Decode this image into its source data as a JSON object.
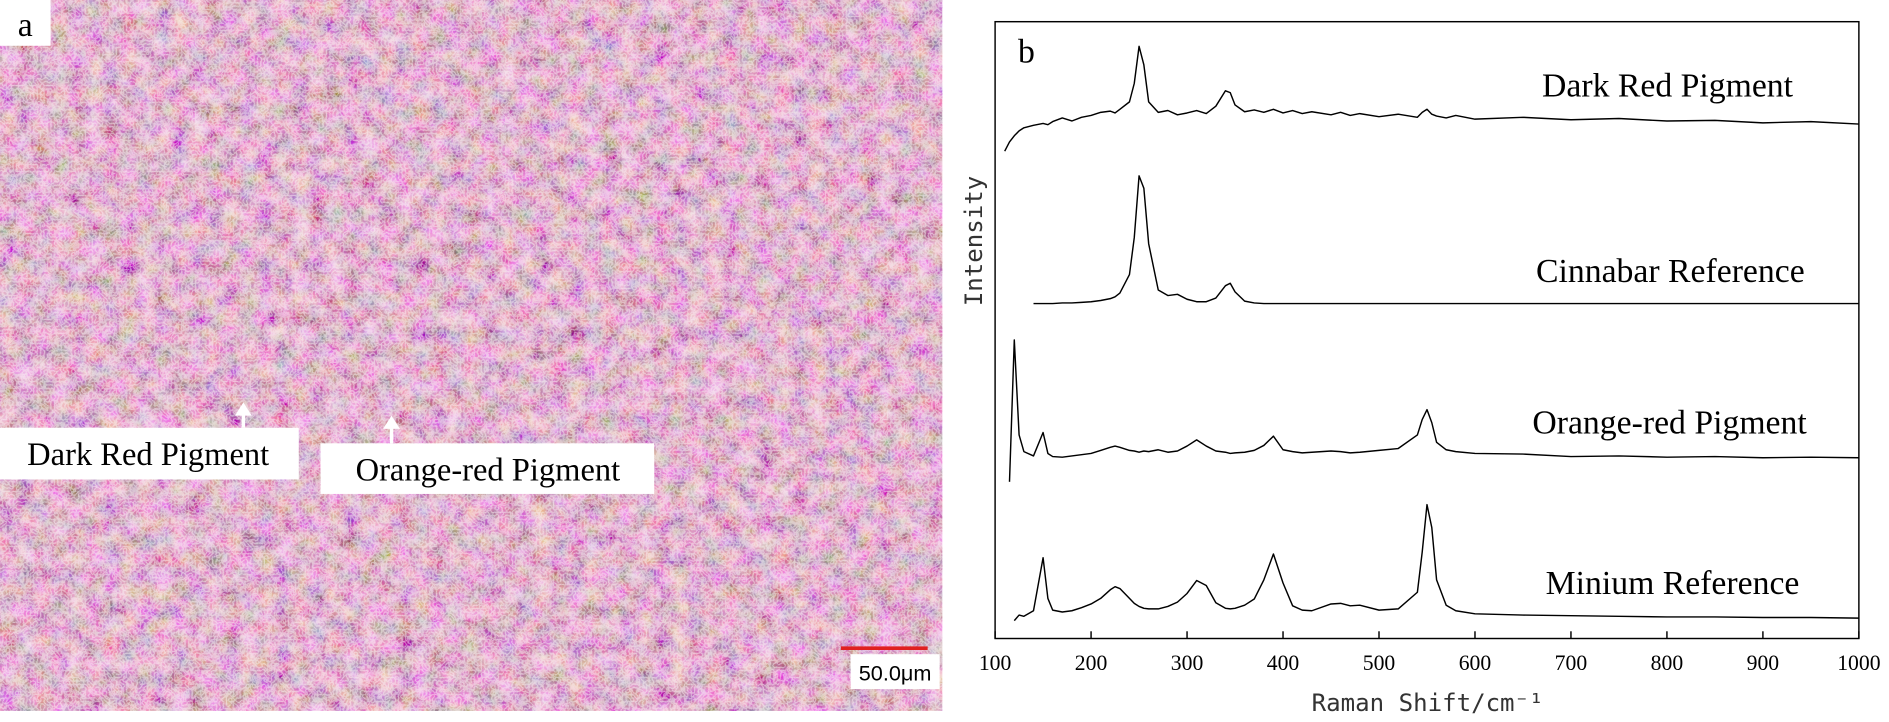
{
  "panel_a": {
    "label": "a",
    "annotations": [
      "Dark Red Pigment",
      "Orange-red Pigment"
    ],
    "scale_bar": "50.0μm"
  },
  "chart_data": {
    "type": "line",
    "panel_label": "b",
    "x_label": "Raman Shift/cm⁻¹",
    "y_label": "Intensity",
    "xlim": [
      100,
      1000
    ],
    "xticks": [
      100,
      200,
      300,
      400,
      500,
      600,
      700,
      800,
      900,
      1000
    ],
    "ylim": [
      0,
      100
    ],
    "grid": false,
    "x": [
      100,
      110,
      115,
      120,
      125,
      130,
      140,
      150,
      155,
      160,
      170,
      180,
      190,
      200,
      210,
      220,
      225,
      230,
      240,
      245,
      250,
      255,
      260,
      270,
      280,
      290,
      300,
      310,
      320,
      330,
      340,
      345,
      350,
      360,
      370,
      380,
      390,
      400,
      410,
      420,
      430,
      450,
      460,
      470,
      480,
      500,
      520,
      540,
      545,
      550,
      555,
      560,
      570,
      580,
      600,
      650,
      700,
      750,
      800,
      850,
      900,
      950,
      1000
    ],
    "series": [
      {
        "name": "Dark Red Pigment",
        "color": "#000000",
        "values": [
          null,
          79,
          80.5,
          81.5,
          82.3,
          82.8,
          83.2,
          83.5,
          83.3,
          83.8,
          84.4,
          83.9,
          84.5,
          84.8,
          85.3,
          85.5,
          85.2,
          85.8,
          87,
          90,
          96,
          93,
          87,
          85.3,
          85.6,
          84.9,
          85.2,
          85.6,
          85.1,
          86.3,
          88.8,
          88.5,
          86.5,
          85.4,
          85.7,
          85.3,
          85.8,
          85.2,
          85.6,
          85.1,
          85.4,
          84.9,
          85.3,
          84.8,
          85.1,
          84.6,
          85,
          84.5,
          85.3,
          85.8,
          85,
          84.7,
          84.4,
          84.8,
          84.2,
          84.5,
          84.1,
          84.3,
          83.9,
          84,
          83.6,
          83.8,
          83.4
        ]
      },
      {
        "name": "Cinnabar Reference",
        "color": "#000000",
        "values": [
          null,
          null,
          null,
          null,
          null,
          null,
          54.3,
          54.3,
          54.3,
          54.3,
          54.4,
          54.4,
          54.5,
          54.6,
          54.8,
          55.1,
          55.4,
          56,
          59,
          65,
          75,
          73,
          64,
          56.5,
          55.6,
          55.8,
          55,
          54.6,
          54.6,
          55.2,
          57.2,
          57.6,
          56.2,
          54.7,
          54.4,
          54.3,
          54.3,
          54.3,
          54.3,
          54.3,
          54.3,
          54.3,
          54.3,
          54.3,
          54.3,
          54.3,
          54.3,
          54.3,
          54.3,
          54.3,
          54.3,
          54.3,
          54.3,
          54.3,
          54.3,
          54.3,
          54.3,
          54.3,
          54.3,
          54.3,
          54.3,
          54.3,
          54.3
        ]
      },
      {
        "name": "Orange-red Pigment",
        "color": "#000000",
        "values": [
          null,
          null,
          25.4,
          48.4,
          33,
          30.3,
          29.6,
          33.4,
          30,
          29.5,
          29.4,
          29.6,
          29.8,
          30,
          30.5,
          31,
          31.2,
          31,
          30.5,
          30.4,
          30.2,
          30.4,
          30.3,
          30.6,
          30.2,
          30.4,
          31.2,
          32.2,
          31.2,
          30.4,
          30.2,
          30,
          30.1,
          30.2,
          30.5,
          31.3,
          32.8,
          30.6,
          30.3,
          30.1,
          30.2,
          30.4,
          30.3,
          30.1,
          30.2,
          30.5,
          30.8,
          33,
          35.5,
          37.1,
          35,
          31.8,
          30.6,
          30.3,
          30,
          29.9,
          29.5,
          29.6,
          29.4,
          29.5,
          29.3,
          29.4,
          29.3
        ]
      },
      {
        "name": "Minium Reference",
        "color": "#000000",
        "values": [
          null,
          null,
          null,
          2.9,
          3.8,
          3.6,
          4.5,
          13.1,
          6.5,
          4.6,
          4.3,
          4.5,
          5,
          5.6,
          6.5,
          7.9,
          8.4,
          8.1,
          6.5,
          5.7,
          5.2,
          4.9,
          4.8,
          4.8,
          5.2,
          5.9,
          7.3,
          9.4,
          8.6,
          5.8,
          4.9,
          4.8,
          4.9,
          5.4,
          6.4,
          9.5,
          13.7,
          9,
          5.3,
          4.6,
          4.5,
          5.6,
          5.7,
          5.3,
          5.4,
          4.6,
          4.8,
          7.5,
          14,
          21.7,
          18,
          9.5,
          5.4,
          4.5,
          4,
          3.8,
          3.7,
          3.6,
          3.5,
          3.5,
          3.4,
          3.4,
          3.3
        ]
      }
    ]
  }
}
